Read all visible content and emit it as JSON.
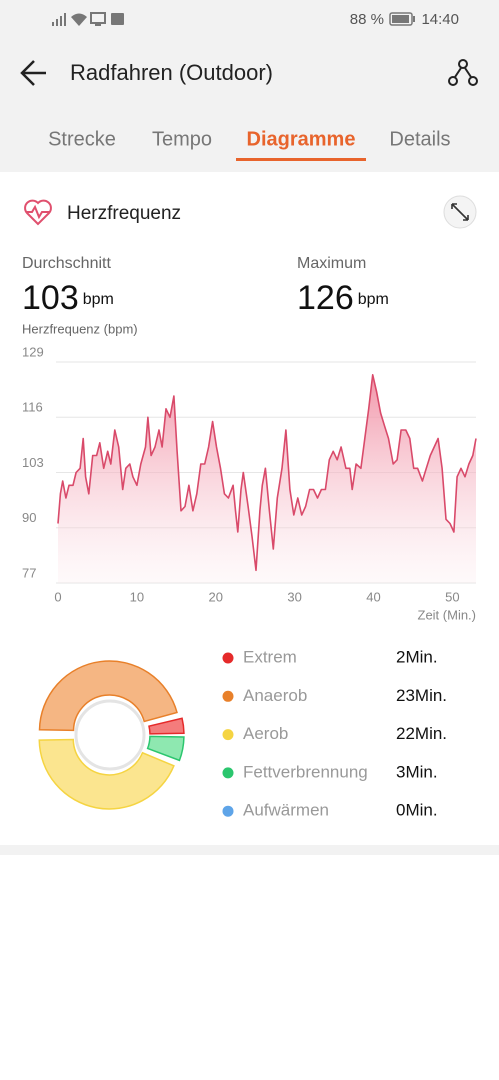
{
  "status_bar": {
    "battery": "88 %",
    "time": "14:40"
  },
  "header": {
    "title": "Radfahren (Outdoor)"
  },
  "tabs": {
    "items": [
      "Strecke",
      "Tempo",
      "Diagramme",
      "Details"
    ],
    "active": 2
  },
  "card": {
    "title": "Herzfrequenz",
    "stats": [
      {
        "label": "Durchschnitt",
        "value": 103,
        "unit": "bpm"
      },
      {
        "label": "Maximum",
        "value": 126,
        "unit": "bpm"
      }
    ]
  },
  "chart_data": [
    {
      "type": "line",
      "y_label": "Herzfrequenz (bpm)",
      "x_label": "Zeit (Min.)",
      "color": "#d94a6a",
      "x": [
        0,
        0.3,
        0.6,
        1.0,
        1.4,
        1.9,
        2.3,
        2.8,
        3.2,
        3.5,
        3.9,
        4.4,
        4.9,
        5.3,
        5.8,
        6.3,
        6.7,
        7.2,
        7.7,
        8.2,
        8.6,
        9.1,
        9.5,
        10.0,
        10.5,
        11.1,
        11.4,
        11.8,
        12.3,
        12.8,
        13.2,
        13.7,
        14.2,
        14.7,
        15.1,
        15.6,
        16.1,
        16.6,
        17.1,
        17.6,
        18.1,
        18.6,
        19.1,
        19.6,
        20.1,
        20.6,
        21.1,
        21.6,
        22.2,
        22.5,
        22.8,
        23.2,
        23.5,
        24.1,
        24.6,
        25.1,
        25.6,
        25.9,
        26.3,
        26.8,
        27.3,
        27.8,
        28.4,
        28.9,
        29.4,
        29.9,
        30.4,
        30.9,
        31.4,
        31.9,
        32.4,
        32.9,
        33.4,
        33.9,
        34.4,
        34.9,
        35.4,
        35.9,
        36.5,
        37.0,
        37.3,
        37.8,
        38.4,
        38.9,
        39.4,
        39.9,
        40.4,
        40.9,
        41.4,
        41.9,
        42.5,
        43.0,
        43.5,
        44.1,
        44.6,
        45.1,
        45.6,
        46.2,
        46.7,
        47.2,
        47.7,
        48.2,
        48.7,
        49.2,
        49.7,
        50.2,
        50.6,
        51.1,
        51.6,
        52.1,
        52.6,
        53.0
      ],
      "values": [
        91,
        98,
        101,
        97,
        100,
        100,
        103,
        104,
        111,
        102,
        98,
        107,
        107,
        110,
        104,
        108,
        105,
        113,
        109,
        99,
        104,
        105,
        102,
        100,
        105,
        109,
        116,
        107,
        109,
        113,
        109,
        118,
        116,
        121,
        108,
        94,
        95,
        100,
        94,
        98,
        105,
        105,
        109,
        115,
        109,
        104,
        98,
        97,
        100,
        94,
        89,
        99,
        103,
        95,
        88,
        80,
        94,
        100,
        104,
        94,
        85,
        97,
        104,
        113,
        99,
        93,
        97,
        93,
        95,
        99,
        99,
        97,
        99,
        99,
        106,
        108,
        106,
        109,
        104,
        104,
        99,
        105,
        104,
        111,
        118,
        126,
        122,
        117,
        114,
        111,
        105,
        106,
        113,
        113,
        111,
        104,
        104,
        101,
        104,
        107,
        109,
        111,
        104,
        92,
        91,
        89,
        102,
        104,
        102,
        105,
        107,
        111
      ],
      "xlim": [
        0,
        53
      ],
      "ylim": [
        77,
        129
      ],
      "xticks": [
        0,
        10,
        20,
        30,
        40,
        50
      ],
      "yticks": [
        77,
        90,
        103,
        116,
        129
      ],
      "grid": true
    },
    {
      "type": "donut",
      "categories": [
        "Extrem",
        "Anaerob",
        "Aerob",
        "Fettverbrennung",
        "Aufwärmen"
      ],
      "values": [
        2,
        23,
        22,
        3,
        0
      ],
      "value_labels": [
        "2Min.",
        "23Min.",
        "22Min.",
        "3Min.",
        "0Min."
      ],
      "colors": [
        "#e52a2a",
        "#e8802a",
        "#f5d442",
        "#2bc66e",
        "#5ea4e8"
      ],
      "fill_colors": [
        "#f47c7c",
        "#f5b683",
        "#fbe58f",
        "#8ee8b0",
        "#a9cdf3"
      ]
    }
  ]
}
